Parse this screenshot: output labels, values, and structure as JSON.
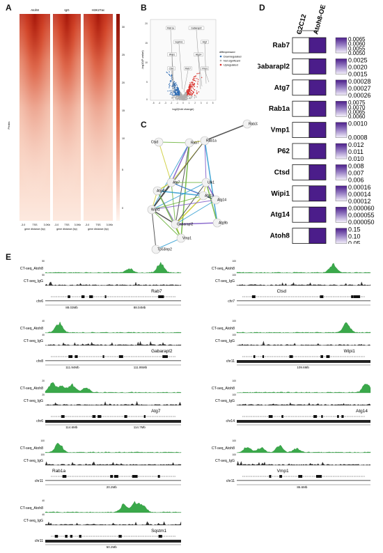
{
  "panels": {
    "A": "A",
    "B": "B",
    "C": "C",
    "D": "D",
    "E": "E"
  },
  "heatmap": {
    "columns": [
      "Atoh8",
      "IgG",
      "H3K27ac"
    ],
    "ticks": [
      "-3.0",
      "TSS",
      "3.0Kb"
    ],
    "xlabel": "gene distance (bp)",
    "ylabel": "Peaks",
    "colorbar_ticks": [
      "30",
      "25",
      "20",
      "15",
      "10",
      "5",
      "0"
    ]
  },
  "volcano": {
    "ylabel": "-log10(P-value)",
    "xlabel": "log2(fold change)",
    "legend_title": "diffexpressed",
    "legend": [
      "Downregulated",
      "Not significant",
      "Upregulated"
    ],
    "colors": {
      "down": "#2f6db5",
      "ns": "#b0b0b0",
      "up": "#d9302a"
    },
    "yticks": [
      "20",
      "15",
      "10",
      "5",
      "0"
    ],
    "xticks": [
      "-5",
      "-4",
      "-3",
      "-2",
      "-1",
      "0",
      "1",
      "2",
      "3",
      "4",
      "5"
    ],
    "genes": [
      "Rab1a",
      "Gabarapl2",
      "Sqstm1",
      "Atg7",
      "Wipi1",
      "Atg14",
      "Ctsd",
      "Rab7",
      "Vmp1"
    ]
  },
  "network": {
    "nodes": [
      "Rab33b",
      "Ctsd",
      "Rab7",
      "Rab1a",
      "Atg7",
      "Ulk1",
      "Atg4b",
      "Atg13",
      "Atg14",
      "Wipi1",
      "Gabarapl2",
      "Atg9b",
      "Vmp1",
      "Tp53inp2"
    ]
  },
  "heat_d": {
    "cols": [
      "C2C12",
      "Atoh8-OE"
    ],
    "rows": [
      {
        "gene": "Rab7",
        "ticks": [
          "0.0065",
          "0.0060",
          "0.0055",
          "0.0050"
        ]
      },
      {
        "gene": "Gabarapl2",
        "ticks": [
          "0.0025",
          "0.0020",
          "0.0015"
        ]
      },
      {
        "gene": "Atg7",
        "ticks": [
          "0.00028",
          "0.00027",
          "0.00026"
        ]
      },
      {
        "gene": "Rab1a",
        "ticks": [
          "0.0075",
          "0.0070",
          "0.0065",
          "0.0060"
        ]
      },
      {
        "gene": "Vmp1",
        "ticks": [
          "0.0010",
          "0.0008"
        ]
      },
      {
        "gene": "P62",
        "ticks": [
          "0.012",
          "0.011",
          "0.010"
        ]
      },
      {
        "gene": "Ctsd",
        "ticks": [
          "0.008",
          "0.007",
          "0.006"
        ]
      },
      {
        "gene": "Wipi1",
        "ticks": [
          "0.00016",
          "0.00014",
          "0.00012"
        ]
      },
      {
        "gene": "Atg14",
        "ticks": [
          "0.000060",
          "0.000055",
          "0.000050"
        ]
      },
      {
        "gene": "Atoh8",
        "ticks": [
          "0.15",
          "0.10",
          "0.05"
        ]
      }
    ]
  },
  "tracks": [
    {
      "gene": "Rab7",
      "chr": "chr6",
      "coords": [
        "88.03Mb",
        "88.04Mb"
      ],
      "a": "CT-seq_Atoh8",
      "b": "CT-seq_IgG",
      "sa": "50",
      "sb": "50"
    },
    {
      "gene": "Ctsd",
      "chr": "chr7",
      "coords": [],
      "a": "CT-seq_Atoh8",
      "b": "CT-seq_IgG",
      "sa": "100",
      "sb": "100"
    },
    {
      "gene": "Gabarapl2",
      "chr": "chr8",
      "coords": [
        "111.94Mb",
        "111.95Mb"
      ],
      "a": "CT-seq_Atoh8",
      "b": "CT-seq_IgG",
      "sa": "40",
      "sb": "40"
    },
    {
      "gene": "Wipi1",
      "chr": "chr11",
      "coords": [
        "109.6Mb"
      ],
      "a": "CT-seq_Atoh8",
      "b": "CT-seq_IgG",
      "sa": "100",
      "sb": "100"
    },
    {
      "gene": "Atg7",
      "chr": "chr6",
      "coords": [
        "114.6Mb",
        "114.7Mb"
      ],
      "a": "CT-seq_Atoh8",
      "b": "CT-seq_IgG",
      "sa": "20",
      "sb": "20"
    },
    {
      "gene": "Atg14",
      "chr": "chr14",
      "coords": [],
      "a": "CT-seq_Atoh8",
      "b": "CT-seq_IgG",
      "sa": "100",
      "sb": "100"
    },
    {
      "gene": "Rab1a",
      "chr": "chr11",
      "coords": [
        "20.2Mb"
      ],
      "a": "CT-seq_Atoh8",
      "b": "CT-seq_IgG",
      "sa": "100",
      "sb": "100"
    },
    {
      "gene": "Vmp1",
      "chr": "chr11",
      "coords": [
        "86.6Mb"
      ],
      "a": "CT-seq_Atoh8",
      "b": "CT-seq_IgG",
      "sa": "100",
      "sb": "100"
    },
    {
      "gene": "Sqstm1",
      "chr": "chr11",
      "coords": [
        "50.2Mb"
      ],
      "a": "CT-seq_Atoh8",
      "b": "CT-seq_IgG",
      "sa": "40",
      "sb": "40"
    }
  ]
}
